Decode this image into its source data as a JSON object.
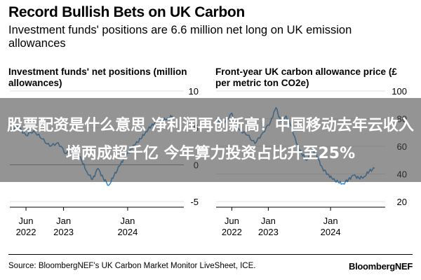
{
  "header": {
    "title": "Record Bullish Bets on UK Carbon",
    "subtitle": "Investment funds' positions are 6.6 million net long on UK emission allowances"
  },
  "footer": {
    "source": "Source: BloombergNEF's UK Carbon Market Monitor LiveSheet, ICE.",
    "brand": "BloombergNEF"
  },
  "overlay": {
    "color": "#4a4a4a",
    "text": "股票配资是什么意思 净利润再创新高！中国移动去年云收入增两成超千亿 今年算力投资占比升至25%"
  },
  "chart_data": [
    {
      "type": "line",
      "title": "Investment funds' net positions (million allowances)",
      "color": "#3a8fd3",
      "ylim": [
        -5,
        10
      ],
      "yticks": [
        "10",
        "5",
        "0",
        "-5"
      ],
      "xticks": [
        {
          "date": "2022-06-01",
          "month": "Jun",
          "year": "2022"
        },
        {
          "date": "2023-01-01",
          "month": "Jan",
          "year": "2023"
        },
        {
          "date": "2024-01-01",
          "month": "Jan",
          "year": "2024"
        }
      ],
      "xlim": [
        "2022-03-01",
        "2024-10-31"
      ],
      "series": [
        {
          "x": [
            "2022-03-01",
            "2022-04-15",
            "2022-06-01",
            "2022-07-15",
            "2022-09-01",
            "2022-10-15",
            "2022-12-01",
            "2023-01-15",
            "2023-03-01",
            "2023-04-15",
            "2023-05-15",
            "2023-06-15",
            "2023-07-15",
            "2023-08-15",
            "2023-09-15",
            "2023-10-15",
            "2023-11-15",
            "2023-12-15",
            "2024-01-15",
            "2024-02-15",
            "2024-03-15",
            "2024-04-15",
            "2024-05-15",
            "2024-06-15",
            "2024-07-15",
            "2024-08-15",
            "2024-09-15"
          ],
          "values": [
            4.5,
            5.2,
            4.0,
            4.6,
            3.5,
            2.5,
            3.0,
            1.5,
            2.5,
            0.5,
            -1.0,
            -2.0,
            -0.5,
            -1.8,
            -2.8,
            -1.5,
            -0.2,
            1.0,
            2.0,
            2.8,
            3.5,
            4.5,
            5.3,
            5.8,
            6.0,
            6.3,
            6.6
          ]
        }
      ]
    },
    {
      "type": "line",
      "title": "Front-year UK carbon allowance price (£ per metric ton CO2e)",
      "color": "#3a8fd3",
      "ylim": [
        20,
        100
      ],
      "yticks": [
        "100",
        "80",
        "60",
        "40",
        "20"
      ],
      "xticks": [
        {
          "date": "2022-06-01",
          "month": "Jun",
          "year": "2022"
        },
        {
          "date": "2023-01-01",
          "month": "Jan",
          "year": "2023"
        },
        {
          "date": "2024-01-01",
          "month": "Jan",
          "year": "2024"
        }
      ],
      "xlim": [
        "2022-03-01",
        "2024-10-31"
      ],
      "series": [
        {
          "x": [
            "2022-03-01",
            "2022-04-15",
            "2022-06-01",
            "2022-07-15",
            "2022-09-01",
            "2022-10-15",
            "2022-12-01",
            "2023-01-15",
            "2023-02-15",
            "2023-03-15",
            "2023-04-15",
            "2023-05-15",
            "2023-06-15",
            "2023-07-15",
            "2023-08-15",
            "2023-09-15",
            "2023-10-15",
            "2023-11-15",
            "2023-12-15",
            "2024-01-15",
            "2024-02-15",
            "2024-03-15",
            "2024-04-15",
            "2024-05-15",
            "2024-06-15",
            "2024-07-15",
            "2024-08-15",
            "2024-09-15"
          ],
          "values": [
            80,
            76,
            84,
            72,
            68,
            62,
            70,
            78,
            88,
            78,
            82,
            75,
            62,
            55,
            50,
            58,
            52,
            44,
            40,
            36,
            34,
            33,
            36,
            39,
            37,
            38,
            42,
            44
          ]
        }
      ]
    }
  ]
}
